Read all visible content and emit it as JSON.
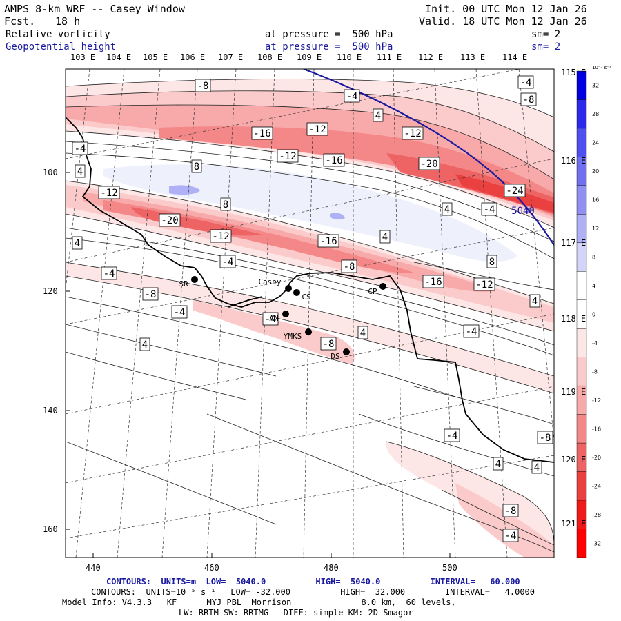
{
  "header": {
    "title": "AMPS 8-km WRF -- Casey Window",
    "fcst_label": "Fcst.",
    "fcst_value": "18 h",
    "init": "Init. 00 UTC Mon 12 Jan 26",
    "valid": "Valid. 18 UTC Mon 12 Jan 26"
  },
  "fields": [
    {
      "name": "Relative vorticity",
      "pressure": "at pressure =  500 hPa",
      "sm": "sm= 2",
      "color": "#000000"
    },
    {
      "name": "Geopotential height",
      "pressure": "at pressure =  500 hPa",
      "sm": "sm= 2",
      "color": "#1a1aa0"
    }
  ],
  "lon_labels_top": [
    "103 E",
    "104 E",
    "105 E",
    "106 E",
    "107 E",
    "108 E",
    "109 E",
    "110 E",
    "111 E",
    "112 E",
    "113 E",
    "114 E"
  ],
  "lon_labels_right": [
    "115 E",
    "116 E",
    "117 E",
    "118 E",
    "119 E",
    "120 E",
    "121 E"
  ],
  "x_ticks": [
    "440",
    "460",
    "480",
    "500"
  ],
  "y_ticks": [
    "100",
    "120",
    "140",
    "160"
  ],
  "colorbar": {
    "unit_label": "10⁻⁵ s⁻¹",
    "levels": [
      "32",
      "28",
      "24",
      "20",
      "16",
      "12",
      "8",
      "4",
      "0",
      "-4",
      "-8",
      "-12",
      "-16",
      "-20",
      "-24",
      "-28",
      "-32"
    ],
    "colors": [
      "#0000e0",
      "#2a2ae8",
      "#5050f0",
      "#7070f0",
      "#9090f2",
      "#b0b0f6",
      "#d4d4fa",
      "#ffffff",
      "#ffffff",
      "#fde6e6",
      "#fbcaca",
      "#f8aaaa",
      "#f48888",
      "#ee6464",
      "#ea4040",
      "#f01a1a",
      "#ff0000"
    ]
  },
  "contour_labels": [
    {
      "text": "-8"
    },
    {
      "text": "-4"
    },
    {
      "text": "-8"
    },
    {
      "text": "-12"
    },
    {
      "text": "-16"
    },
    {
      "text": "-12"
    },
    {
      "text": "-12"
    },
    {
      "text": "-16"
    },
    {
      "text": "-20"
    },
    {
      "text": "-24"
    },
    {
      "text": "8"
    },
    {
      "text": "-12"
    },
    {
      "text": "8"
    },
    {
      "text": "-20"
    },
    {
      "text": "-12"
    },
    {
      "text": "-16"
    },
    {
      "text": "4"
    },
    {
      "text": "-4"
    },
    {
      "text": "-4"
    },
    {
      "text": "-8"
    },
    {
      "text": "-16"
    },
    {
      "text": "-12"
    },
    {
      "text": "8"
    },
    {
      "text": "-8"
    },
    {
      "text": "-4"
    },
    {
      "text": "-4"
    },
    {
      "text": "4"
    },
    {
      "text": "-4"
    },
    {
      "text": "4"
    },
    {
      "text": "-8"
    },
    {
      "text": "4"
    },
    {
      "text": "-4"
    },
    {
      "text": "4"
    },
    {
      "text": "4"
    },
    {
      "text": "-4"
    },
    {
      "text": "-4"
    },
    {
      "text": "4"
    },
    {
      "text": "-4"
    },
    {
      "text": "-8"
    },
    {
      "text": "-8"
    },
    {
      "text": "4"
    },
    {
      "text": "4"
    },
    {
      "text": "-4"
    },
    {
      "text": "4"
    }
  ],
  "height_contour_label": "5040",
  "stations": [
    {
      "name": "SR"
    },
    {
      "name": "Casey"
    },
    {
      "name": "CS"
    },
    {
      "name": "CP"
    },
    {
      "name": "AN"
    },
    {
      "name": "YMKS"
    },
    {
      "name": "DS"
    }
  ],
  "footer": {
    "line1": "CONTOURS:  UNITS=m  LOW=  5040.0          HIGH=  5040.0          INTERVAL=   60.000",
    "line2": "CONTOURS:  UNITS=10⁻⁵ s⁻¹   LOW= -32.000          HIGH=  32.000        INTERVAL=   4.0000",
    "line3": "Model Info: V4.3.3   KF      MYJ PBL  Morrison              8.0 km,  60 levels,",
    "line4": "LW: RRTM SW: RRTMG   DIFF: simple KM: 2D Smagor"
  }
}
